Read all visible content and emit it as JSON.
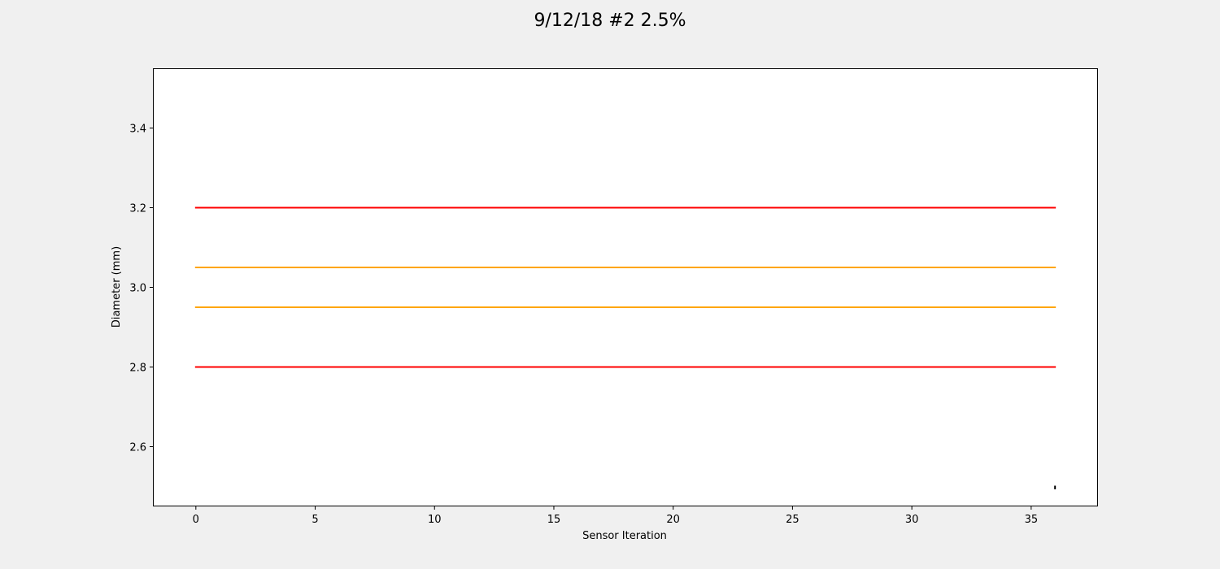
{
  "chart_data": {
    "type": "line",
    "title": "9/12/18 #2 2.5%",
    "xlabel": "Sensor Iteration",
    "ylabel": "Diameter (mm)",
    "xlim": [
      -1.8,
      37.8
    ],
    "ylim": [
      2.45,
      3.55
    ],
    "xticks": [
      0,
      5,
      10,
      15,
      20,
      25,
      30,
      35
    ],
    "xtick_labels": [
      "0",
      "5",
      "10",
      "15",
      "20",
      "25",
      "30",
      "35"
    ],
    "yticks": [
      2.6,
      2.8,
      3.0,
      3.2,
      3.4
    ],
    "ytick_labels": [
      "2.6",
      "2.8",
      "3.0",
      "3.2",
      "3.4"
    ],
    "grid": false,
    "legend": "none",
    "series": [
      {
        "color": "#ff0000",
        "x": [
          0,
          36
        ],
        "y": [
          3.2,
          3.2
        ]
      },
      {
        "color": "#ffa500",
        "x": [
          0,
          36
        ],
        "y": [
          3.05,
          3.05
        ]
      },
      {
        "color": "#ffa500",
        "x": [
          0,
          36
        ],
        "y": [
          2.95,
          2.95
        ]
      },
      {
        "color": "#ff0000",
        "x": [
          0,
          36
        ],
        "y": [
          2.8,
          2.8
        ]
      },
      {
        "color": "#000000",
        "x": [
          36,
          36
        ],
        "y": [
          2.495,
          2.5
        ]
      }
    ]
  }
}
